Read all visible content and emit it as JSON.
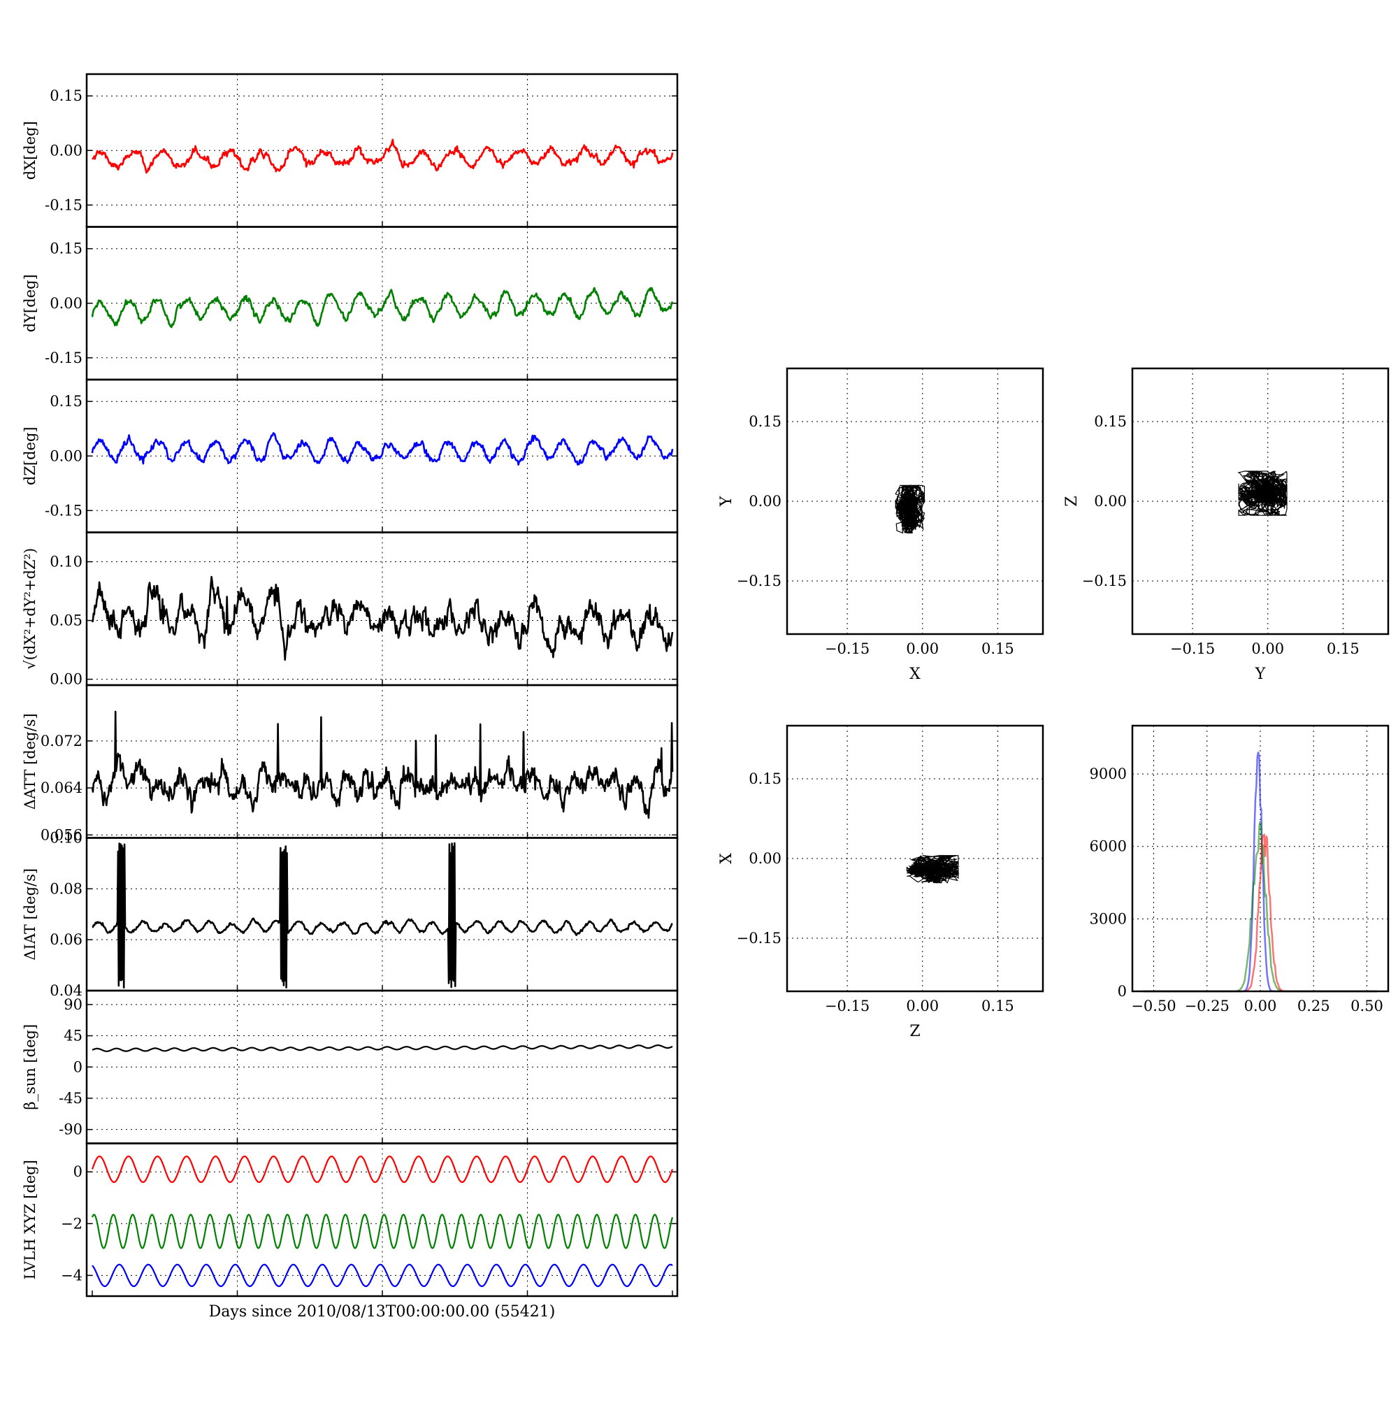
{
  "figure": {
    "xlabel": "Days since 2010/08/13T00:00:00.00 (55421)"
  },
  "colors": {
    "red": "#ff0000",
    "green": "#008000",
    "blue": "#0000ff",
    "black": "#000000"
  },
  "chart_data": [
    {
      "type": "line",
      "id": "dx",
      "ylabel": "dX[deg]",
      "ylim": [
        -0.21,
        0.21
      ],
      "yticks": [
        "0.15",
        "0.00",
        "-0.15"
      ],
      "ytick_values": [
        0.15,
        0.0,
        -0.15
      ],
      "grid": true,
      "series": [
        {
          "color": "#ff0000",
          "mean": -0.02,
          "periods": 18,
          "amplitude": 0.02,
          "noise": 0.006,
          "spike_amp": 0.01,
          "trend": 0.01
        }
      ]
    },
    {
      "type": "line",
      "id": "dy",
      "ylabel": "dY[deg]",
      "ylim": [
        -0.21,
        0.21
      ],
      "yticks": [
        "0.15",
        "0.00",
        "-0.15"
      ],
      "ytick_values": [
        0.15,
        0.0,
        -0.15
      ],
      "grid": true,
      "series": [
        {
          "color": "#008000",
          "mean": -0.01,
          "periods": 20,
          "amplitude": 0.03,
          "noise": 0.006,
          "spike_amp": 0.0,
          "trend": 0.03
        }
      ]
    },
    {
      "type": "line",
      "id": "dz",
      "ylabel": "dZ[deg]",
      "ylim": [
        -0.21,
        0.21
      ],
      "yticks": [
        "0.15",
        "0.00",
        "-0.15"
      ],
      "ytick_values": [
        0.15,
        0.0,
        -0.15
      ],
      "grid": true,
      "series": [
        {
          "color": "#0000ff",
          "mean": 0.015,
          "periods": 20,
          "amplitude": 0.025,
          "noise": 0.006,
          "spike_amp": 0.0,
          "trend": 0.0
        }
      ]
    },
    {
      "type": "line",
      "id": "rss",
      "ylabel": "√(dX²+dY²+dZ²)",
      "ylim": [
        -0.005,
        0.125
      ],
      "yticks": [
        "0.10",
        "0.05",
        "0.00"
      ],
      "ytick_values": [
        0.1,
        0.05,
        0.0
      ],
      "grid": true,
      "series": [
        {
          "color": "#000000",
          "mean": 0.05,
          "periods": 20,
          "amplitude": 0.012,
          "noise": 0.006,
          "spike_amp": 0.03,
          "trend": -0.012
        }
      ]
    },
    {
      "type": "line",
      "id": "datt",
      "ylabel": "ΔATT [deg/s]",
      "ylim": [
        0.0555,
        0.0815
      ],
      "yticks": [
        "0.072",
        "0.064",
        "0.056"
      ],
      "ytick_values": [
        0.072,
        0.064,
        0.056
      ],
      "grid": true,
      "series": [
        {
          "color": "#000000",
          "mean": 0.0645,
          "periods": 28,
          "amplitude": 0.0015,
          "noise": 0.0012,
          "spike_amp": 0.012,
          "trend": 0.0
        }
      ]
    },
    {
      "type": "line",
      "id": "diat",
      "ylabel": "ΔIAT [deg/s]",
      "ylim": [
        0.04,
        0.1
      ],
      "yticks": [
        "0.10",
        "0.08",
        "0.06",
        "0.04"
      ],
      "ytick_values": [
        0.1,
        0.08,
        0.06,
        0.04
      ],
      "grid": true,
      "series": [
        {
          "color": "#000000",
          "mean": 0.065,
          "periods": 26,
          "amplitude": 0.002,
          "noise": 0.0004,
          "bursts": [
            0.05,
            0.33,
            0.62
          ],
          "burst_range": [
            0.043,
            0.096
          ]
        }
      ]
    },
    {
      "type": "line",
      "id": "beta",
      "ylabel": "β_sun [deg]",
      "ylim": [
        -110,
        110
      ],
      "yticks": [
        "90",
        "45",
        "0",
        "-45",
        "-90"
      ],
      "ytick_values": [
        90,
        45,
        0,
        -45,
        -90
      ],
      "grid": true,
      "series": [
        {
          "color": "#000000",
          "mean": 27,
          "periods": 30,
          "amplitude": 2,
          "noise": 0.0,
          "trend": 5
        }
      ]
    },
    {
      "type": "line",
      "id": "lvlh",
      "ylabel": "LVLH XYZ [deg]",
      "ylim": [
        -4.8,
        1.1
      ],
      "yticks": [
        "0",
        "−2",
        "−4"
      ],
      "ytick_values": [
        0,
        -2,
        -4
      ],
      "grid": true,
      "series": [
        {
          "color": "#ff0000",
          "mean": 0.1,
          "periods": 20,
          "amplitude": 0.5,
          "noise": 0.0
        },
        {
          "color": "#008000",
          "mean": -2.3,
          "periods": 30,
          "amplitude": 0.65,
          "noise": 0.0
        },
        {
          "color": "#0000ff",
          "mean": -4.0,
          "periods": 20,
          "amplitude": 0.42,
          "noise": 0.0
        }
      ]
    },
    {
      "type": "scatter",
      "id": "xy",
      "xlabel": "X",
      "ylabel": "Y",
      "xlim": [
        -0.27,
        0.24
      ],
      "ylim": [
        -0.25,
        0.25
      ],
      "ticks": [
        "−0.15",
        "0.00",
        "0.15"
      ],
      "tick_values": [
        -0.15,
        0.0,
        0.15
      ],
      "grid": true,
      "cloud": {
        "center": [
          -0.025,
          -0.015
        ],
        "spread": [
          0.018,
          0.028
        ]
      }
    },
    {
      "type": "scatter",
      "id": "yz",
      "xlabel": "Y",
      "ylabel": "Z",
      "xlim": [
        -0.27,
        0.24
      ],
      "ylim": [
        -0.25,
        0.25
      ],
      "ticks": [
        "−0.15",
        "0.00",
        "0.15"
      ],
      "tick_values": [
        -0.15,
        0.0,
        0.15
      ],
      "grid": true,
      "cloud": {
        "center": [
          -0.01,
          0.015
        ],
        "spread": [
          0.03,
          0.026
        ]
      }
    },
    {
      "type": "scatter",
      "id": "zx",
      "xlabel": "Z",
      "ylabel": "X",
      "xlim": [
        -0.27,
        0.24
      ],
      "ylim": [
        -0.25,
        0.25
      ],
      "ticks": [
        "−0.15",
        "0.00",
        "0.15"
      ],
      "tick_values": [
        -0.15,
        0.0,
        0.15
      ],
      "grid": true,
      "cloud": {
        "center": [
          0.02,
          -0.02
        ],
        "spread": [
          0.032,
          0.016
        ]
      }
    },
    {
      "type": "histogram",
      "id": "hist",
      "xlim": [
        -0.6,
        0.6
      ],
      "ylim": [
        0,
        11000
      ],
      "xticks": [
        "−0.50",
        "−0.25",
        "0.00",
        "0.25",
        "0.50"
      ],
      "xtick_values": [
        -0.5,
        -0.25,
        0.0,
        0.25,
        0.5
      ],
      "yticks": [
        "9000",
        "6000",
        "3000",
        "0"
      ],
      "ytick_values": [
        9000,
        6000,
        3000,
        0
      ],
      "grid": true,
      "series": [
        {
          "color": "#0000ff",
          "center": -0.01,
          "width": 0.018,
          "peak": 10000
        },
        {
          "color": "#008000",
          "center": -0.005,
          "width": 0.03,
          "peak": 6500
        },
        {
          "color": "#ff0000",
          "center": 0.02,
          "width": 0.025,
          "peak": 6500
        }
      ]
    }
  ]
}
